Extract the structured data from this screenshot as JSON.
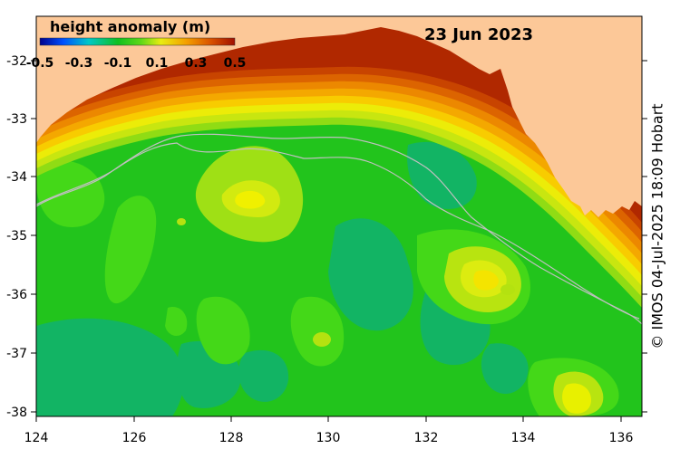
{
  "map": {
    "title": "height anomaly (m)",
    "date": "23 Jun 2023",
    "credit": "© IMOS 04-Jul-2025 18:09 Hobart",
    "colorbar_ticks": [
      "-0.5",
      "-0.3",
      "-0.1",
      "0.1",
      "0.3",
      "0.5"
    ],
    "x_ticks": [
      "124",
      "126",
      "128",
      "130",
      "132",
      "134",
      "136"
    ],
    "y_ticks": [
      "-32",
      "-33",
      "-34",
      "-35",
      "-36",
      "-37",
      "-38"
    ]
  },
  "colors": {
    "land": "#fcc898",
    "ocean_base": "#22c41c",
    "ocean_light": "#44d818",
    "ocean_teal": "#12b464",
    "eddy_yellow": "#d2ea10",
    "eddy_center": "#f4f400",
    "bathymetry": "#b8b8b8"
  }
}
